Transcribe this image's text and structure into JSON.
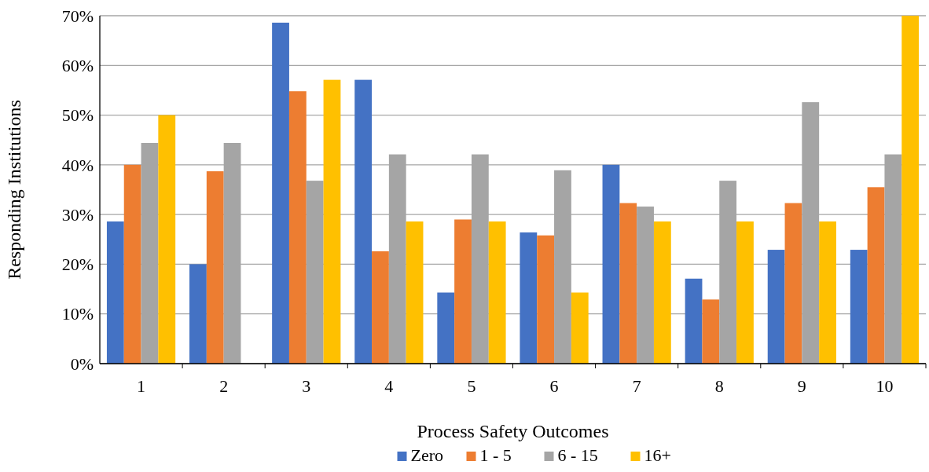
{
  "chart_data": {
    "type": "bar",
    "xlabel": "Process Safety Outcomes",
    "ylabel": "Responding Institutions",
    "categories": [
      "1",
      "2",
      "3",
      "4",
      "5",
      "6",
      "7",
      "8",
      "9",
      "10"
    ],
    "series": [
      {
        "name": "Zero",
        "color": "#4472c4",
        "values": [
          28.6,
          20,
          68.6,
          57.1,
          14.3,
          26.4,
          40,
          17.1,
          22.9,
          22.9
        ]
      },
      {
        "name": "1 - 5",
        "color": "#ed7d31",
        "values": [
          40,
          38.7,
          54.8,
          22.6,
          29,
          25.8,
          32.3,
          12.9,
          32.3,
          35.5
        ]
      },
      {
        "name": "6 - 15",
        "color": "#a5a5a5",
        "values": [
          44.4,
          44.4,
          36.8,
          42.1,
          42.1,
          38.9,
          31.6,
          36.8,
          52.6,
          42.1
        ]
      },
      {
        "name": "16+",
        "color": "#ffc000",
        "values": [
          50,
          0,
          57.1,
          28.6,
          28.6,
          14.3,
          28.6,
          28.6,
          28.6,
          70
        ]
      }
    ],
    "ylim": [
      0,
      70
    ],
    "yticks": [
      {
        "value": 0,
        "label": "0%"
      },
      {
        "value": 10,
        "label": "10%"
      },
      {
        "value": 20,
        "label": "20%"
      },
      {
        "value": 30,
        "label": "30%"
      },
      {
        "value": 40,
        "label": "40%"
      },
      {
        "value": 50,
        "label": "50%"
      },
      {
        "value": 60,
        "label": "60%"
      },
      {
        "value": 70,
        "label": "70%"
      }
    ],
    "grid": "y",
    "legend": "bottom"
  }
}
